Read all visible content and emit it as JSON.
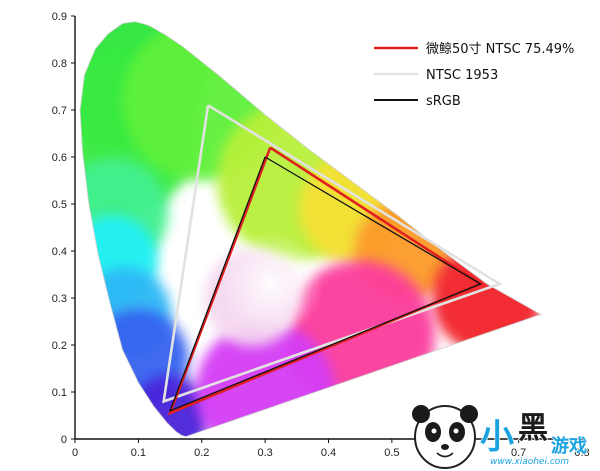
{
  "chart_data": {
    "type": "line",
    "title": "",
    "xlabel": "",
    "ylabel": "",
    "xlim": [
      0,
      0.8
    ],
    "ylim": [
      0,
      0.9
    ],
    "x_ticks": [
      "0",
      "0.1",
      "0.2",
      "0.3",
      "0.4",
      "0.5",
      "0.6",
      "0.7",
      "0.8"
    ],
    "y_ticks": [
      "0",
      "0.1",
      "0.2",
      "0.3",
      "0.4",
      "0.5",
      "0.6",
      "0.7",
      "0.8",
      "0.9"
    ],
    "legend_position": "top-right",
    "series": [
      {
        "name": "微鲸50寸 NTSC 75.49%",
        "color": "#e02020",
        "points": [
          [
            0.308,
            0.62
          ],
          [
            0.64,
            0.33
          ],
          [
            0.15,
            0.055
          ],
          [
            0.308,
            0.62
          ]
        ]
      },
      {
        "name": "NTSC 1953",
        "color": "#e2e2e2",
        "points": [
          [
            0.21,
            0.71
          ],
          [
            0.67,
            0.33
          ],
          [
            0.14,
            0.08
          ],
          [
            0.21,
            0.71
          ]
        ]
      },
      {
        "name": "sRGB",
        "color": "#111111",
        "points": [
          [
            0.3,
            0.6
          ],
          [
            0.64,
            0.33
          ],
          [
            0.15,
            0.06
          ],
          [
            0.3,
            0.6
          ]
        ]
      }
    ]
  },
  "watermark": {
    "chars": [
      "小",
      "黑",
      "游戏"
    ],
    "site": "www.xiaohei.com",
    "icon": "panda-mascot-icon"
  }
}
